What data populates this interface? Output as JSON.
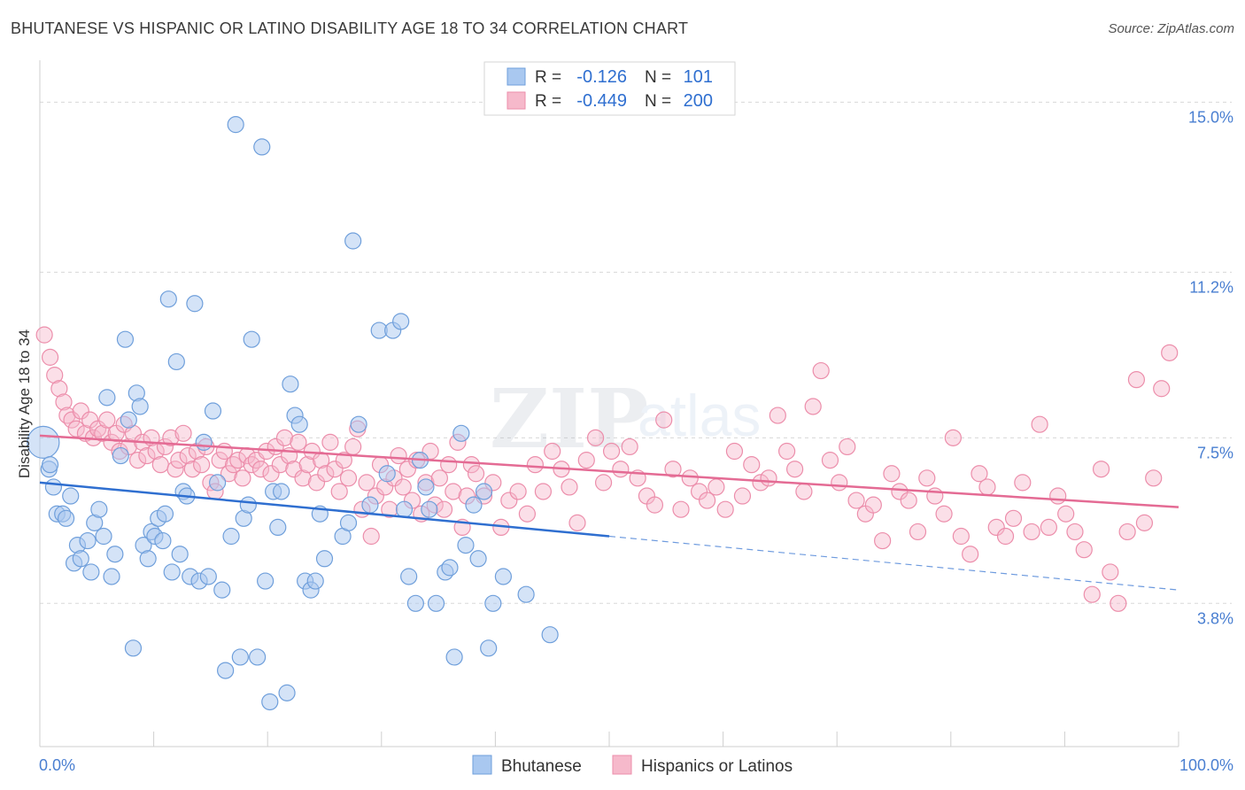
{
  "title": "BHUTANESE VS HISPANIC OR LATINO DISABILITY AGE 18 TO 34 CORRELATION CHART",
  "source": "Source: ZipAtlas.com",
  "watermark": {
    "zip": "ZIP",
    "atlas": "atlas"
  },
  "legend_top": [
    {
      "r_label": "R = ",
      "r_value": "-0.126",
      "n_label": "N = ",
      "n_value": "101"
    },
    {
      "r_label": "R = ",
      "r_value": "-0.449",
      "n_label": "N = ",
      "n_value": "200"
    }
  ],
  "legend_bottom": [
    "Bhutanese",
    "Hispanics or Latinos"
  ],
  "colors": {
    "blue_fill": "#a9c8f0",
    "blue_stroke": "#6f9fdb",
    "blue_line": "#2f6fd0",
    "pink_fill": "#f6b9cb",
    "pink_stroke": "#ec8eab",
    "pink_line": "#e46b94",
    "grid": "#d8d8d8",
    "axis_text": "#4a7fd1",
    "value_text": "#2f6fd0"
  },
  "chart_data": {
    "type": "scatter",
    "title": "BHUTANESE VS HISPANIC OR LATINO DISABILITY AGE 18 TO 34 CORRELATION CHART",
    "xlabel": "",
    "ylabel": "Disability Age 18 to 34",
    "xlim": [
      0,
      100
    ],
    "ylim": [
      0.6,
      15.7
    ],
    "x_tick_labels": [
      "0.0%",
      "100.0%"
    ],
    "y_ticks": [
      3.8,
      7.5,
      11.2,
      15.0
    ],
    "y_tick_labels": [
      "3.8%",
      "7.5%",
      "11.2%",
      "15.0%"
    ],
    "grid": true,
    "legend_position": "top-center",
    "series": [
      {
        "name": "Bhutanese",
        "r": -0.126,
        "n": 101,
        "trend": {
          "x0": 0,
          "y0": 6.5,
          "x1": 50,
          "y1": 5.3,
          "dash_x1": 100,
          "dash_y1": 4.1
        },
        "points": [
          [
            0.3,
            7.4
          ],
          [
            0.8,
            6.8
          ],
          [
            0.9,
            6.9
          ],
          [
            1.2,
            6.4
          ],
          [
            1.5,
            5.8
          ],
          [
            2.0,
            5.8
          ],
          [
            2.3,
            5.7
          ],
          [
            2.7,
            6.2
          ],
          [
            3.0,
            4.7
          ],
          [
            3.3,
            5.1
          ],
          [
            3.6,
            4.8
          ],
          [
            4.2,
            5.2
          ],
          [
            4.5,
            4.5
          ],
          [
            4.8,
            5.6
          ],
          [
            5.2,
            5.9
          ],
          [
            5.6,
            5.3
          ],
          [
            5.9,
            8.4
          ],
          [
            6.3,
            4.4
          ],
          [
            6.6,
            4.9
          ],
          [
            7.1,
            7.1
          ],
          [
            7.5,
            9.7
          ],
          [
            7.8,
            7.9
          ],
          [
            8.2,
            2.8
          ],
          [
            8.5,
            8.5
          ],
          [
            8.8,
            8.2
          ],
          [
            9.1,
            5.1
          ],
          [
            9.5,
            4.8
          ],
          [
            9.8,
            5.4
          ],
          [
            10.1,
            5.3
          ],
          [
            10.4,
            5.7
          ],
          [
            10.8,
            5.2
          ],
          [
            11.0,
            5.8
          ],
          [
            11.3,
            10.6
          ],
          [
            11.6,
            4.5
          ],
          [
            12.0,
            9.2
          ],
          [
            12.3,
            4.9
          ],
          [
            12.6,
            6.3
          ],
          [
            12.9,
            6.2
          ],
          [
            13.2,
            4.4
          ],
          [
            13.6,
            10.5
          ],
          [
            14.0,
            4.3
          ],
          [
            14.4,
            7.4
          ],
          [
            14.8,
            4.4
          ],
          [
            15.2,
            8.1
          ],
          [
            15.6,
            6.5
          ],
          [
            16.0,
            4.1
          ],
          [
            16.3,
            2.3
          ],
          [
            16.8,
            5.3
          ],
          [
            17.2,
            14.5
          ],
          [
            17.6,
            2.6
          ],
          [
            17.9,
            5.7
          ],
          [
            18.3,
            6.0
          ],
          [
            18.6,
            9.7
          ],
          [
            19.1,
            2.6
          ],
          [
            19.5,
            14.0
          ],
          [
            19.8,
            4.3
          ],
          [
            20.2,
            1.6
          ],
          [
            20.5,
            6.3
          ],
          [
            20.9,
            5.5
          ],
          [
            21.2,
            6.3
          ],
          [
            21.7,
            1.8
          ],
          [
            22.0,
            8.7
          ],
          [
            22.4,
            8.0
          ],
          [
            22.8,
            7.8
          ],
          [
            23.3,
            4.3
          ],
          [
            23.8,
            4.1
          ],
          [
            24.2,
            4.3
          ],
          [
            24.6,
            5.8
          ],
          [
            25.0,
            4.8
          ],
          [
            26.6,
            5.3
          ],
          [
            27.1,
            5.6
          ],
          [
            27.5,
            11.9
          ],
          [
            28.0,
            7.8
          ],
          [
            29.0,
            6.0
          ],
          [
            29.8,
            9.9
          ],
          [
            30.5,
            6.7
          ],
          [
            31.0,
            9.9
          ],
          [
            31.7,
            10.1
          ],
          [
            32.0,
            5.9
          ],
          [
            32.4,
            4.4
          ],
          [
            33.0,
            3.8
          ],
          [
            33.4,
            7.0
          ],
          [
            33.9,
            6.4
          ],
          [
            34.2,
            5.9
          ],
          [
            34.8,
            3.8
          ],
          [
            35.6,
            4.5
          ],
          [
            36.0,
            4.6
          ],
          [
            36.4,
            2.6
          ],
          [
            37.0,
            7.6
          ],
          [
            37.4,
            5.1
          ],
          [
            38.1,
            6.0
          ],
          [
            38.5,
            4.8
          ],
          [
            39.0,
            6.3
          ],
          [
            39.4,
            2.8
          ],
          [
            39.8,
            3.8
          ],
          [
            40.7,
            4.4
          ],
          [
            42.7,
            4.0
          ],
          [
            44.8,
            3.1
          ]
        ]
      },
      {
        "name": "Hispanics or Latinos",
        "r": -0.449,
        "n": 200,
        "trend": {
          "x0": 0,
          "y0": 7.55,
          "x1": 100,
          "y1": 5.95
        },
        "points": [
          [
            0.4,
            9.8
          ],
          [
            0.9,
            9.3
          ],
          [
            1.3,
            8.9
          ],
          [
            1.7,
            8.6
          ],
          [
            2.1,
            8.3
          ],
          [
            2.4,
            8.0
          ],
          [
            2.8,
            7.9
          ],
          [
            3.2,
            7.7
          ],
          [
            3.6,
            8.1
          ],
          [
            4.0,
            7.6
          ],
          [
            4.4,
            7.9
          ],
          [
            4.7,
            7.5
          ],
          [
            5.1,
            7.7
          ],
          [
            5.5,
            7.6
          ],
          [
            5.9,
            7.9
          ],
          [
            6.3,
            7.4
          ],
          [
            6.7,
            7.6
          ],
          [
            7.0,
            7.2
          ],
          [
            7.4,
            7.8
          ],
          [
            7.8,
            7.3
          ],
          [
            8.2,
            7.6
          ],
          [
            8.6,
            7.0
          ],
          [
            9.0,
            7.4
          ],
          [
            9.4,
            7.1
          ],
          [
            9.8,
            7.5
          ],
          [
            10.2,
            7.2
          ],
          [
            10.6,
            6.9
          ],
          [
            11.0,
            7.3
          ],
          [
            11.5,
            7.5
          ],
          [
            11.9,
            6.8
          ],
          [
            12.2,
            7.0
          ],
          [
            12.6,
            7.6
          ],
          [
            13.0,
            7.1
          ],
          [
            13.4,
            6.8
          ],
          [
            13.8,
            7.2
          ],
          [
            14.2,
            6.9
          ],
          [
            14.6,
            7.3
          ],
          [
            15.0,
            6.5
          ],
          [
            15.4,
            6.3
          ],
          [
            15.8,
            7.0
          ],
          [
            16.2,
            7.2
          ],
          [
            16.6,
            6.7
          ],
          [
            17.0,
            6.9
          ],
          [
            17.4,
            7.0
          ],
          [
            17.8,
            6.6
          ],
          [
            18.2,
            7.1
          ],
          [
            18.6,
            6.9
          ],
          [
            19.0,
            7.0
          ],
          [
            19.4,
            6.8
          ],
          [
            19.9,
            7.2
          ],
          [
            20.3,
            6.7
          ],
          [
            20.7,
            7.3
          ],
          [
            21.1,
            6.9
          ],
          [
            21.5,
            7.5
          ],
          [
            21.9,
            7.1
          ],
          [
            22.3,
            6.8
          ],
          [
            22.7,
            7.4
          ],
          [
            23.1,
            6.6
          ],
          [
            23.5,
            6.9
          ],
          [
            23.9,
            7.2
          ],
          [
            24.3,
            6.5
          ],
          [
            24.7,
            7.0
          ],
          [
            25.1,
            6.7
          ],
          [
            25.5,
            7.4
          ],
          [
            25.9,
            6.8
          ],
          [
            26.3,
            6.3
          ],
          [
            26.7,
            7.0
          ],
          [
            27.1,
            6.6
          ],
          [
            27.5,
            7.3
          ],
          [
            27.9,
            7.7
          ],
          [
            28.3,
            5.9
          ],
          [
            28.7,
            6.5
          ],
          [
            29.1,
            5.3
          ],
          [
            29.5,
            6.2
          ],
          [
            29.9,
            6.9
          ],
          [
            30.3,
            6.4
          ],
          [
            30.7,
            5.9
          ],
          [
            31.1,
            6.6
          ],
          [
            31.5,
            7.1
          ],
          [
            31.9,
            6.4
          ],
          [
            32.3,
            6.8
          ],
          [
            32.7,
            6.1
          ],
          [
            33.1,
            7.0
          ],
          [
            33.5,
            5.8
          ],
          [
            33.9,
            6.5
          ],
          [
            34.3,
            7.2
          ],
          [
            34.7,
            6.0
          ],
          [
            35.1,
            6.6
          ],
          [
            35.5,
            5.9
          ],
          [
            35.9,
            6.9
          ],
          [
            36.3,
            6.3
          ],
          [
            36.7,
            7.4
          ],
          [
            37.1,
            5.5
          ],
          [
            37.5,
            6.2
          ],
          [
            37.9,
            6.9
          ],
          [
            38.3,
            6.7
          ],
          [
            39.0,
            6.2
          ],
          [
            39.8,
            6.5
          ],
          [
            40.5,
            5.5
          ],
          [
            41.2,
            6.1
          ],
          [
            42.0,
            6.3
          ],
          [
            42.8,
            5.8
          ],
          [
            43.5,
            6.9
          ],
          [
            44.2,
            6.3
          ],
          [
            45.0,
            7.2
          ],
          [
            45.8,
            6.8
          ],
          [
            46.5,
            6.4
          ],
          [
            47.2,
            5.6
          ],
          [
            48.0,
            7.0
          ],
          [
            48.8,
            7.5
          ],
          [
            49.5,
            6.5
          ],
          [
            50.2,
            7.2
          ],
          [
            51.0,
            6.8
          ],
          [
            51.8,
            7.3
          ],
          [
            52.5,
            6.6
          ],
          [
            53.3,
            6.2
          ],
          [
            54.0,
            6.0
          ],
          [
            54.8,
            7.9
          ],
          [
            55.6,
            6.8
          ],
          [
            56.3,
            5.9
          ],
          [
            57.1,
            6.6
          ],
          [
            57.9,
            6.3
          ],
          [
            58.6,
            6.1
          ],
          [
            59.4,
            6.4
          ],
          [
            60.2,
            5.9
          ],
          [
            61.0,
            7.2
          ],
          [
            61.7,
            6.2
          ],
          [
            62.5,
            6.9
          ],
          [
            63.3,
            6.5
          ],
          [
            64.0,
            6.6
          ],
          [
            64.8,
            8.0
          ],
          [
            65.6,
            7.2
          ],
          [
            66.3,
            6.8
          ],
          [
            67.1,
            6.3
          ],
          [
            67.9,
            8.2
          ],
          [
            68.6,
            9.0
          ],
          [
            69.4,
            7.0
          ],
          [
            70.2,
            6.5
          ],
          [
            70.9,
            7.3
          ],
          [
            71.7,
            6.1
          ],
          [
            72.5,
            5.8
          ],
          [
            73.2,
            6.0
          ],
          [
            74.0,
            5.2
          ],
          [
            74.8,
            6.7
          ],
          [
            75.5,
            6.3
          ],
          [
            76.3,
            6.1
          ],
          [
            77.1,
            5.4
          ],
          [
            77.9,
            6.6
          ],
          [
            78.6,
            6.2
          ],
          [
            79.4,
            5.8
          ],
          [
            80.2,
            7.5
          ],
          [
            80.9,
            5.3
          ],
          [
            81.7,
            4.9
          ],
          [
            82.5,
            6.7
          ],
          [
            83.2,
            6.4
          ],
          [
            84.0,
            5.5
          ],
          [
            84.8,
            5.3
          ],
          [
            85.5,
            5.7
          ],
          [
            86.3,
            6.5
          ],
          [
            87.1,
            5.4
          ],
          [
            87.8,
            7.8
          ],
          [
            88.6,
            5.5
          ],
          [
            89.4,
            6.2
          ],
          [
            90.1,
            5.8
          ],
          [
            90.9,
            5.4
          ],
          [
            91.7,
            5.0
          ],
          [
            92.4,
            4.0
          ],
          [
            93.2,
            6.8
          ],
          [
            94.0,
            4.5
          ],
          [
            94.7,
            3.8
          ],
          [
            95.5,
            5.4
          ],
          [
            96.3,
            8.8
          ],
          [
            97.0,
            5.6
          ],
          [
            97.8,
            6.6
          ],
          [
            98.5,
            8.6
          ],
          [
            99.2,
            9.4
          ]
        ]
      }
    ]
  }
}
